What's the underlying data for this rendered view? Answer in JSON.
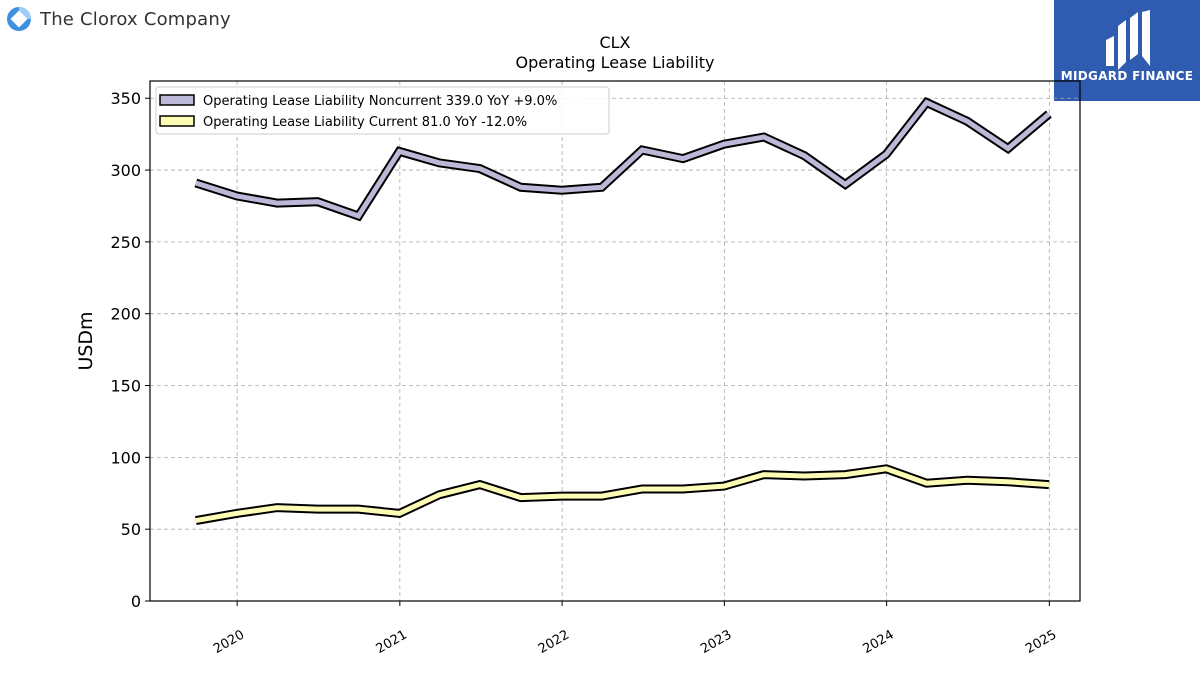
{
  "header": {
    "company_name": "The Clorox Company",
    "logo_icon": "clorox-logo-icon"
  },
  "brand": {
    "name": "MIDGARD FINANCE",
    "logo_icon": "midgard-logo-icon",
    "color": "#2f5bb0"
  },
  "chart_data": {
    "type": "line",
    "title": "CLX",
    "subtitle": "Operating Lease Liability",
    "xlabel": "",
    "ylabel": "USDm",
    "x_ticks": [
      "2020",
      "2021",
      "2022",
      "2023",
      "2024",
      "2025"
    ],
    "y_ticks": [
      0,
      50,
      100,
      150,
      200,
      250,
      300,
      350
    ],
    "ylim": [
      0,
      362
    ],
    "xlim": [
      "2019-06-19",
      "2025-03-11"
    ],
    "grid": true,
    "legend_position": "top-left",
    "series": [
      {
        "name": "Operating Lease Liability Noncurrent  339.0 YoY +9.0%",
        "color": "#bcb8d8",
        "x": [
          "2019-09-30",
          "2019-12-31",
          "2020-03-31",
          "2020-06-30",
          "2020-09-30",
          "2020-12-31",
          "2021-03-31",
          "2021-06-30",
          "2021-09-30",
          "2021-12-31",
          "2022-03-31",
          "2022-06-30",
          "2022-09-30",
          "2022-12-31",
          "2023-03-31",
          "2023-06-30",
          "2023-09-30",
          "2023-12-31",
          "2024-03-31",
          "2024-06-30",
          "2024-09-30",
          "2024-12-31"
        ],
        "values": [
          291,
          282,
          277,
          278,
          268,
          313,
          305,
          301,
          288,
          286,
          288,
          314,
          308,
          318,
          323,
          310,
          290,
          311,
          347,
          334,
          315,
          339
        ]
      },
      {
        "name": "Operating Lease Liability Current  81.0 YoY -12.0%",
        "color": "#fdfcb4",
        "x": [
          "2019-09-30",
          "2019-12-31",
          "2020-03-31",
          "2020-06-30",
          "2020-09-30",
          "2020-12-31",
          "2021-03-31",
          "2021-06-30",
          "2021-09-30",
          "2021-12-31",
          "2022-03-31",
          "2022-06-30",
          "2022-09-30",
          "2022-12-31",
          "2023-03-31",
          "2023-06-30",
          "2023-09-30",
          "2023-12-31",
          "2024-03-31",
          "2024-06-30",
          "2024-09-30",
          "2024-12-31"
        ],
        "values": [
          56,
          61,
          65,
          64,
          64,
          61,
          74,
          81,
          72,
          73,
          73,
          78,
          78,
          80,
          88,
          87,
          88,
          92,
          82,
          84,
          83,
          81
        ]
      }
    ]
  }
}
